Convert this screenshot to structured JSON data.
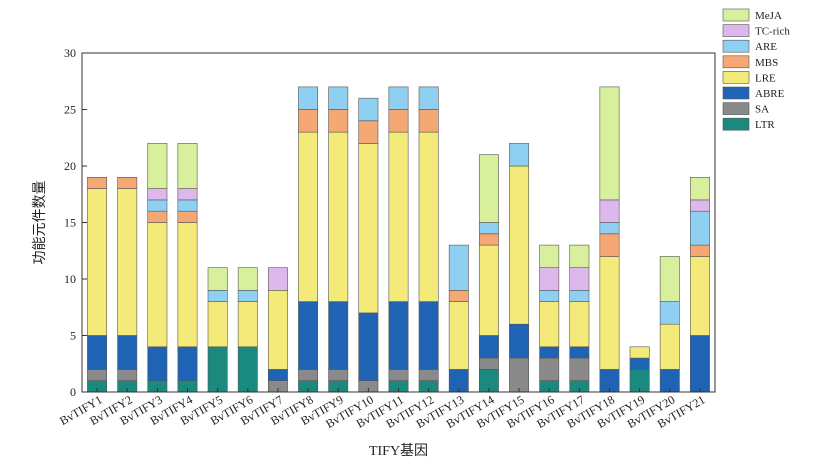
{
  "chart_data": {
    "type": "bar",
    "stacked": true,
    "xlabel": "TIFY基因",
    "ylabel": "功能元件数量",
    "ylim": [
      0,
      30
    ],
    "yticks": [
      0,
      5,
      10,
      15,
      20,
      25,
      30
    ],
    "grid": false,
    "legend_position": "top-right, outside plot area",
    "categories": [
      "BvTIFY1",
      "BvTIFY2",
      "BvTIFY3",
      "BvTIFY4",
      "BvTIFY5",
      "BvTIFY6",
      "BvTIFY7",
      "BvTIFY8",
      "BvTIFY9",
      "BvTIFY10",
      "BvTIFY11",
      "BvTIFY12",
      "BvTIFY13",
      "BvTIFY14",
      "BvTIFY15",
      "BvTIFY16",
      "BvTIFY17",
      "BvTIFY18",
      "BvTIFY19",
      "BvTIFY20",
      "BvTIFY21"
    ],
    "series": [
      {
        "name": "LTR",
        "color": "#1a8a7e",
        "values": [
          1,
          1,
          1,
          1,
          4,
          4,
          0,
          1,
          1,
          0,
          1,
          1,
          0,
          2,
          0,
          1,
          1,
          0,
          2,
          0,
          0
        ]
      },
      {
        "name": "SA",
        "color": "#8a8a8a",
        "values": [
          1,
          1,
          0,
          0,
          0,
          0,
          1,
          1,
          1,
          1,
          1,
          1,
          0,
          1,
          3,
          2,
          2,
          0,
          0,
          0,
          0
        ]
      },
      {
        "name": "ABRE",
        "color": "#1f64b4",
        "values": [
          3,
          3,
          3,
          3,
          0,
          0,
          1,
          6,
          6,
          6,
          6,
          6,
          2,
          2,
          3,
          1,
          1,
          2,
          1,
          2,
          5
        ]
      },
      {
        "name": "LRE",
        "color": "#f4ea7a",
        "values": [
          13,
          13,
          11,
          11,
          4,
          4,
          7,
          15,
          15,
          15,
          15,
          15,
          6,
          8,
          14,
          4,
          4,
          10,
          1,
          4,
          7
        ]
      },
      {
        "name": "MBS",
        "color": "#f6a874",
        "values": [
          1,
          1,
          1,
          1,
          0,
          0,
          0,
          2,
          2,
          2,
          2,
          2,
          1,
          1,
          0,
          0,
          0,
          2,
          0,
          0,
          1
        ]
      },
      {
        "name": "ARE",
        "color": "#8fd0f2",
        "values": [
          0,
          0,
          1,
          1,
          1,
          1,
          0,
          2,
          2,
          2,
          2,
          2,
          4,
          1,
          2,
          1,
          1,
          1,
          0,
          2,
          3
        ]
      },
      {
        "name": "TC-rich",
        "color": "#ddb8ec",
        "values": [
          0,
          0,
          1,
          1,
          0,
          0,
          2,
          0,
          0,
          0,
          0,
          0,
          0,
          0,
          0,
          2,
          2,
          2,
          0,
          0,
          1
        ]
      },
      {
        "name": "MeJA",
        "color": "#d8ef9e",
        "values": [
          0,
          0,
          4,
          4,
          2,
          2,
          0,
          0,
          0,
          0,
          0,
          0,
          0,
          6,
          0,
          2,
          2,
          10,
          0,
          4,
          2
        ]
      }
    ]
  }
}
